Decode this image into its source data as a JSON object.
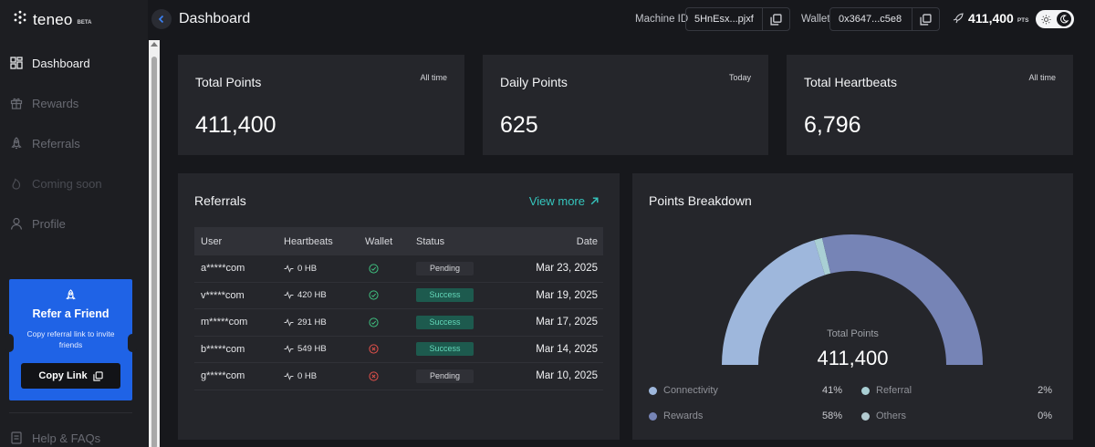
{
  "app": {
    "name": "teneo",
    "badge": "BETA"
  },
  "sidebar": {
    "items": [
      {
        "label": "Dashboard",
        "icon": "dashboard-grid-icon",
        "active": true
      },
      {
        "label": "Rewards",
        "icon": "gift-icon",
        "active": false
      },
      {
        "label": "Referrals",
        "icon": "rocket-icon",
        "active": false
      },
      {
        "label": "Coming soon",
        "icon": "flame-icon",
        "active": false
      },
      {
        "label": "Profile",
        "icon": "user-icon",
        "active": false
      }
    ],
    "refer_card": {
      "title": "Refer a Friend",
      "subtitle": "Copy referral link to invite friends",
      "button": "Copy Link"
    },
    "help": "Help & FAQs"
  },
  "header": {
    "title": "Dashboard",
    "machine_label": "Machine ID",
    "machine_id": "5HnEsx...pjxf",
    "wallet_label": "Wallet",
    "wallet": "0x3647...c5e8",
    "points": "411,400",
    "points_unit": "PTS"
  },
  "stats": [
    {
      "title": "Total Points",
      "tag": "All time",
      "value": "411,400"
    },
    {
      "title": "Daily Points",
      "tag": "Today",
      "value": "625"
    },
    {
      "title": "Total Heartbeats",
      "tag": "All time",
      "value": "6,796"
    }
  ],
  "referrals": {
    "title": "Referrals",
    "view_more": "View more",
    "columns": [
      "User",
      "Heartbeats",
      "Wallet",
      "Status",
      "Date"
    ],
    "rows": [
      {
        "user": "a*****com",
        "heartbeats": "0 HB",
        "wallet_ok": true,
        "status": "Pending",
        "date": "Mar 23, 2025"
      },
      {
        "user": "v*****com",
        "heartbeats": "420 HB",
        "wallet_ok": true,
        "status": "Success",
        "date": "Mar 19, 2025"
      },
      {
        "user": "m*****com",
        "heartbeats": "291 HB",
        "wallet_ok": true,
        "status": "Success",
        "date": "Mar 17, 2025"
      },
      {
        "user": "b*****com",
        "heartbeats": "549 HB",
        "wallet_ok": false,
        "status": "Success",
        "date": "Mar 14, 2025"
      },
      {
        "user": "g*****com",
        "heartbeats": "0 HB",
        "wallet_ok": false,
        "status": "Pending",
        "date": "Mar 10, 2025"
      }
    ]
  },
  "breakdown": {
    "title": "Points Breakdown",
    "center_label": "Total Points",
    "center_value": "411,400"
  },
  "chart_data": {
    "type": "pie",
    "title": "Points Breakdown",
    "categories": [
      "Connectivity",
      "Referral",
      "Rewards",
      "Others"
    ],
    "values": [
      41,
      2,
      58,
      0
    ],
    "labels": [
      "41%",
      "2%",
      "58%",
      "0%"
    ],
    "colors": [
      "#9eb7dc",
      "#a9cfd4",
      "#7684b6",
      "#b3cad0"
    ],
    "legend_placement": "bottom"
  },
  "colors": {
    "accent": "#1f63e6",
    "link": "#35c5bd",
    "success": "#63d7b9",
    "error": "#e0504a"
  }
}
